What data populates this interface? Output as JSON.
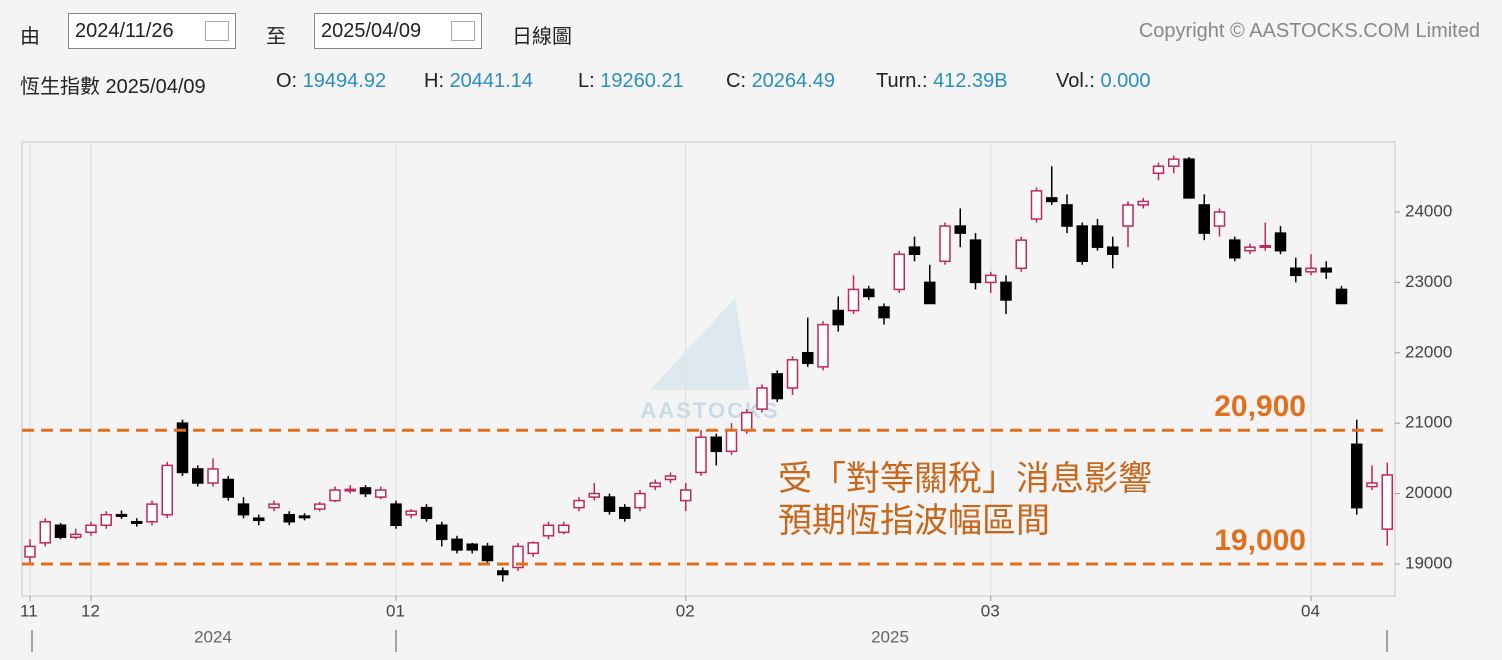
{
  "header": {
    "from_label": "由",
    "from_date": "2024/11/26",
    "to_label": "至",
    "to_date": "2025/04/09",
    "chart_type": "日線圖",
    "copyright": "Copyright © AASTOCKS.COM Limited"
  },
  "quote": {
    "name": "恆生指數 2025/04/09",
    "fields": [
      {
        "label": "O:",
        "value": "19494.92"
      },
      {
        "label": "H:",
        "value": "20441.14"
      },
      {
        "label": "L:",
        "value": "19260.21"
      },
      {
        "label": "C:",
        "value": "20264.49"
      },
      {
        "label": "Turn.:",
        "value": "412.39B"
      },
      {
        "label": "Vol.:",
        "value": "0.000"
      }
    ]
  },
  "chart_data": {
    "type": "candlestick",
    "ohlc": [
      [
        19100,
        19350,
        19000,
        19250
      ],
      [
        19300,
        19650,
        19250,
        19600
      ],
      [
        19550,
        19580,
        19350,
        19380
      ],
      [
        19380,
        19500,
        19350,
        19420
      ],
      [
        19450,
        19600,
        19400,
        19550
      ],
      [
        19550,
        19750,
        19500,
        19700
      ],
      [
        19700,
        19760,
        19640,
        19690
      ],
      [
        19600,
        19650,
        19530,
        19580
      ],
      [
        19600,
        19900,
        19550,
        19850
      ],
      [
        19700,
        20450,
        19650,
        20400
      ],
      [
        21000,
        21050,
        20250,
        20300
      ],
      [
        20350,
        20400,
        20100,
        20150
      ],
      [
        20150,
        20500,
        20100,
        20350
      ],
      [
        20200,
        20250,
        19900,
        19950
      ],
      [
        19850,
        19950,
        19650,
        19700
      ],
      [
        19650,
        19700,
        19550,
        19620
      ],
      [
        19800,
        19900,
        19750,
        19850
      ],
      [
        19700,
        19750,
        19550,
        19600
      ],
      [
        19680,
        19720,
        19620,
        19660
      ],
      [
        19780,
        19880,
        19750,
        19850
      ],
      [
        19900,
        20100,
        19880,
        20050
      ],
      [
        20050,
        20120,
        20000,
        20060
      ],
      [
        20080,
        20120,
        19950,
        20000
      ],
      [
        19950,
        20100,
        19920,
        20050
      ],
      [
        19850,
        19900,
        19500,
        19550
      ],
      [
        19700,
        19780,
        19650,
        19750
      ],
      [
        19800,
        19850,
        19600,
        19650
      ],
      [
        19550,
        19600,
        19250,
        19350
      ],
      [
        19350,
        19400,
        19150,
        19200
      ],
      [
        19280,
        19300,
        19150,
        19200
      ],
      [
        19250,
        19300,
        19000,
        19050
      ],
      [
        18900,
        18950,
        18750,
        18850
      ],
      [
        18950,
        19300,
        18900,
        19250
      ],
      [
        19150,
        19320,
        19100,
        19300
      ],
      [
        19400,
        19600,
        19350,
        19550
      ],
      [
        19450,
        19600,
        19420,
        19550
      ],
      [
        19800,
        19950,
        19750,
        19900
      ],
      [
        19950,
        20150,
        19900,
        20000
      ],
      [
        19950,
        20000,
        19700,
        19750
      ],
      [
        19800,
        19850,
        19600,
        19650
      ],
      [
        19800,
        20050,
        19750,
        20000
      ],
      [
        20100,
        20200,
        20050,
        20150
      ],
      [
        20200,
        20300,
        20150,
        20250
      ],
      [
        19900,
        20150,
        19750,
        20050
      ],
      [
        20300,
        20900,
        20250,
        20800
      ],
      [
        20800,
        20850,
        20400,
        20600
      ],
      [
        20600,
        21000,
        20550,
        20900
      ],
      [
        20900,
        21200,
        20850,
        21150
      ],
      [
        21200,
        21550,
        21150,
        21500
      ],
      [
        21700,
        21750,
        21300,
        21350
      ],
      [
        21500,
        21950,
        21400,
        21900
      ],
      [
        22000,
        22500,
        21800,
        21850
      ],
      [
        21800,
        22450,
        21750,
        22400
      ],
      [
        22600,
        22800,
        22300,
        22400
      ],
      [
        22600,
        23100,
        22550,
        22900
      ],
      [
        22900,
        22950,
        22750,
        22800
      ],
      [
        22650,
        22700,
        22400,
        22500
      ],
      [
        22900,
        23450,
        22850,
        23400
      ],
      [
        23500,
        23650,
        23300,
        23400
      ],
      [
        23000,
        23250,
        22700,
        22700
      ],
      [
        23300,
        23850,
        23250,
        23800
      ],
      [
        23800,
        24050,
        23500,
        23700
      ],
      [
        23600,
        23700,
        22900,
        23000
      ],
      [
        23000,
        23150,
        22850,
        23100
      ],
      [
        23000,
        23100,
        22550,
        22750
      ],
      [
        23200,
        23650,
        23150,
        23600
      ],
      [
        23900,
        24350,
        23850,
        24300
      ],
      [
        24200,
        24650,
        24100,
        24150
      ],
      [
        24100,
        24250,
        23700,
        23800
      ],
      [
        23800,
        23850,
        23250,
        23300
      ],
      [
        23800,
        23900,
        23450,
        23500
      ],
      [
        23500,
        23650,
        23200,
        23400
      ],
      [
        23800,
        24150,
        23500,
        24100
      ],
      [
        24100,
        24200,
        24050,
        24150
      ],
      [
        24550,
        24700,
        24450,
        24650
      ],
      [
        24650,
        24800,
        24550,
        24750
      ],
      [
        24750,
        24780,
        24200,
        24200
      ],
      [
        24100,
        24250,
        23600,
        23700
      ],
      [
        23800,
        24050,
        23650,
        24000
      ],
      [
        23600,
        23650,
        23300,
        23350
      ],
      [
        23450,
        23550,
        23400,
        23500
      ],
      [
        23500,
        23850,
        23450,
        23520
      ],
      [
        23700,
        23800,
        23400,
        23450
      ],
      [
        23200,
        23350,
        23000,
        23100
      ],
      [
        23150,
        23400,
        23100,
        23200
      ],
      [
        23200,
        23300,
        23050,
        23150
      ],
      [
        22900,
        22950,
        22700,
        22700
      ],
      [
        20700,
        21050,
        19700,
        19800
      ],
      [
        20100,
        20400,
        20050,
        20150
      ],
      [
        19494.92,
        20441.14,
        19260.21,
        20264.49
      ]
    ],
    "ylim": [
      18545,
      24994
    ],
    "yticks": [
      19000,
      20000,
      21000,
      22000,
      23000,
      24000
    ],
    "xticks": [
      {
        "value": 0,
        "label": "11"
      },
      {
        "value": 4,
        "label": "12"
      },
      {
        "value": 24,
        "label": "01"
      },
      {
        "value": 43,
        "label": "02"
      },
      {
        "value": 63,
        "label": "03"
      },
      {
        "value": 84,
        "label": "04"
      }
    ],
    "year_labels": [
      "2024",
      "2025"
    ],
    "up_color": "#c0285a",
    "down_color": "#000000",
    "reference_lines": [
      {
        "value": 20900,
        "label": "20,900"
      },
      {
        "value": 19000,
        "label": "19,000"
      }
    ],
    "line_color": "#e0701e",
    "annotation": [
      "受「對等關稅」消息影響",
      "預期恆指波幅區間"
    ],
    "annotation_color": "#c8661a",
    "watermark": "AASTOCKS"
  }
}
